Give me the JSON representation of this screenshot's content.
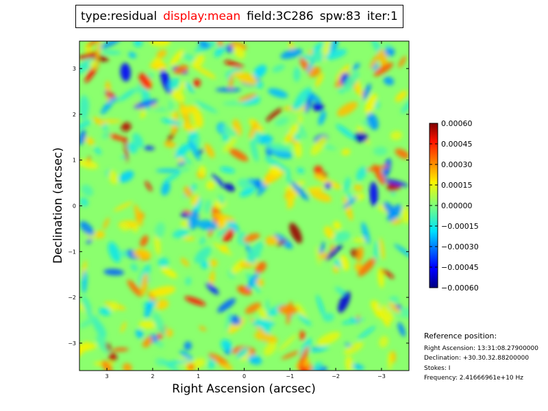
{
  "header": {
    "type": "type:residual",
    "display": "display:mean",
    "field": "field:3C286",
    "spw": "spw:83",
    "iter": "iter:1",
    "highlight_color": "#ff0000"
  },
  "chart_data": {
    "type": "heatmap",
    "title": "",
    "xlabel": "Right Ascension (arcsec)",
    "ylabel": "Declination (arcsec)",
    "xlim": [
      3.6,
      -3.6
    ],
    "ylim": [
      -3.6,
      3.6
    ],
    "x_ticks": [
      3,
      2,
      1,
      0,
      -1,
      -2,
      -3
    ],
    "x_tick_labels": [
      "3",
      "2",
      "1",
      "0",
      "−1",
      "−2",
      "−3"
    ],
    "y_ticks": [
      3,
      2,
      1,
      0,
      -1,
      -2,
      -3
    ],
    "y_tick_labels": [
      "3",
      "2",
      "1",
      "0",
      "−1",
      "−2",
      "−3"
    ],
    "colormap": "jet",
    "value_range": [
      -0.0006,
      0.0006
    ],
    "colorbar_ticks": [
      0.0006,
      0.00045,
      0.0003,
      0.00015,
      0.0,
      -0.00015,
      -0.0003,
      -0.00045,
      -0.0006
    ],
    "colorbar_labels": [
      "0.00060",
      "0.00045",
      "0.00030",
      "0.00015",
      "0.00000",
      "−0.00015",
      "−0.00030",
      "−0.00045",
      "−0.00060"
    ]
  },
  "reference": {
    "heading": "Reference position:",
    "right_ascension": "Right Ascension: 13:31:08.27900000",
    "declination": "Declination: +30.30.32.88200000",
    "stokes": "Stokes: I",
    "frequency": "Frequency: 2.41666961e+10 Hz"
  }
}
